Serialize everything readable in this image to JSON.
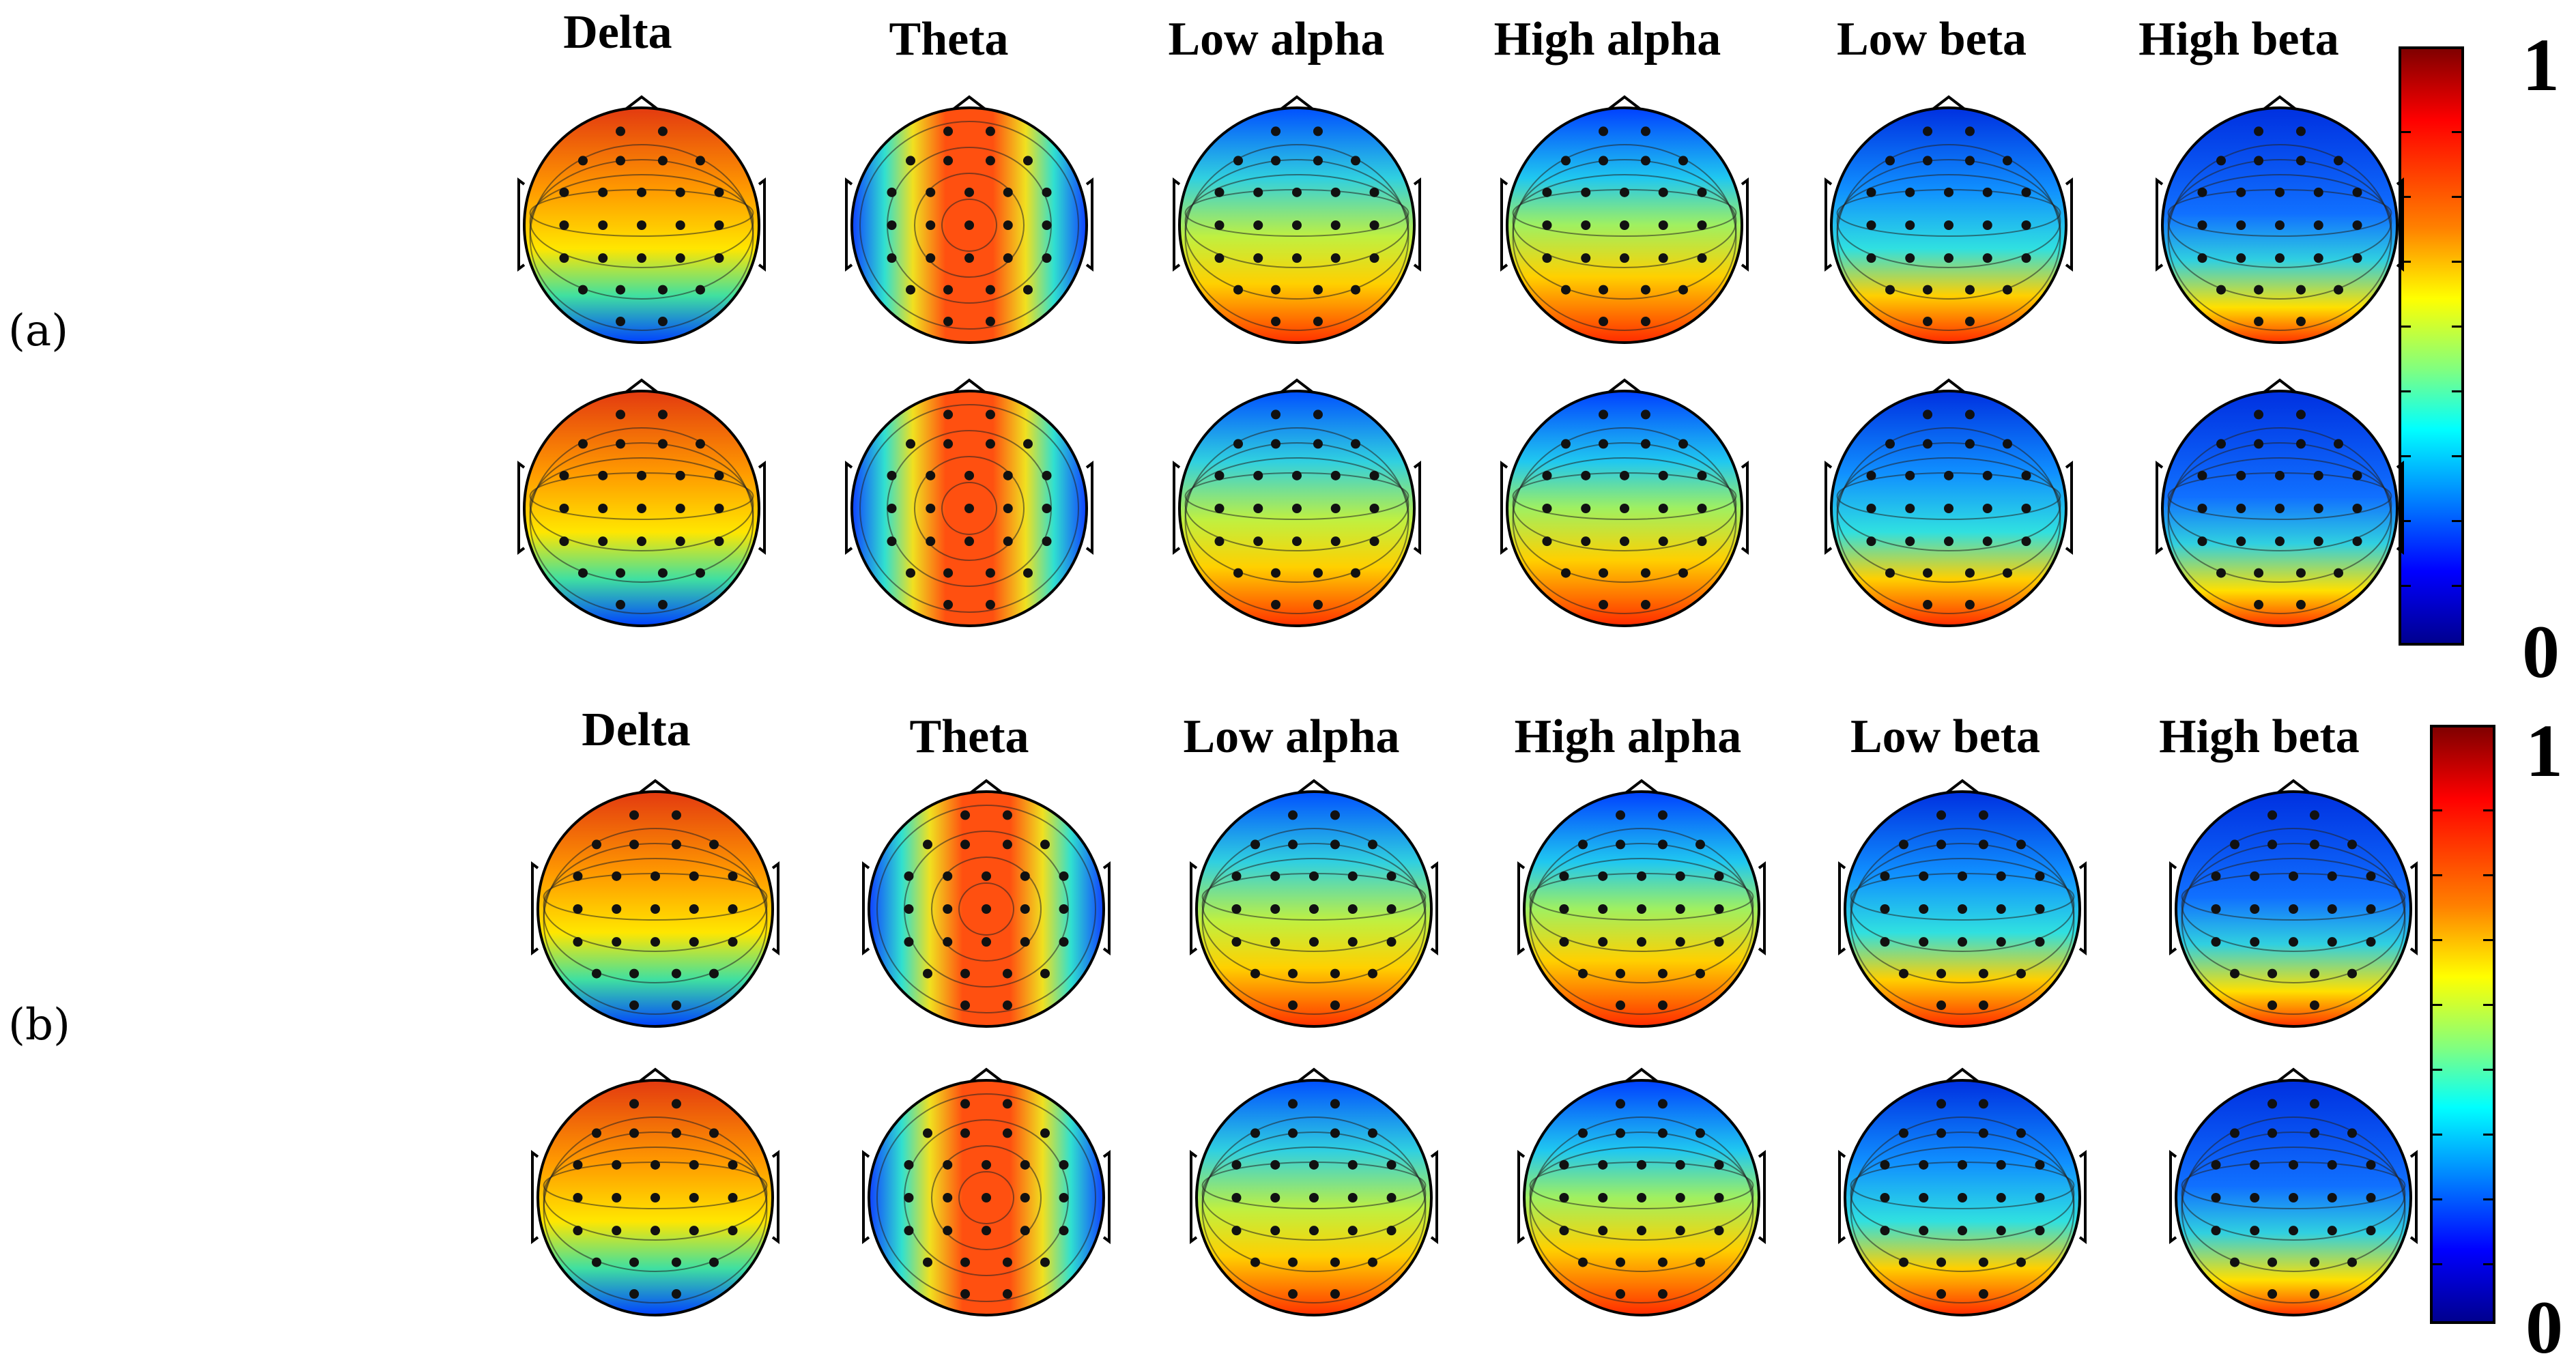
{
  "panels": [
    {
      "label": "(a)",
      "bands": [
        "Delta",
        "Theta",
        "Low alpha",
        "High alpha",
        "Low beta",
        "High beta"
      ],
      "colorbar": {
        "max": "1",
        "min": "0"
      }
    },
    {
      "label": "(b)",
      "bands": [
        "Delta",
        "Theta",
        "Low alpha",
        "High alpha",
        "Low beta",
        "High beta"
      ],
      "colorbar": {
        "max": "1",
        "min": "0"
      }
    }
  ],
  "colormap": "jet",
  "rows_per_panel": 2
}
